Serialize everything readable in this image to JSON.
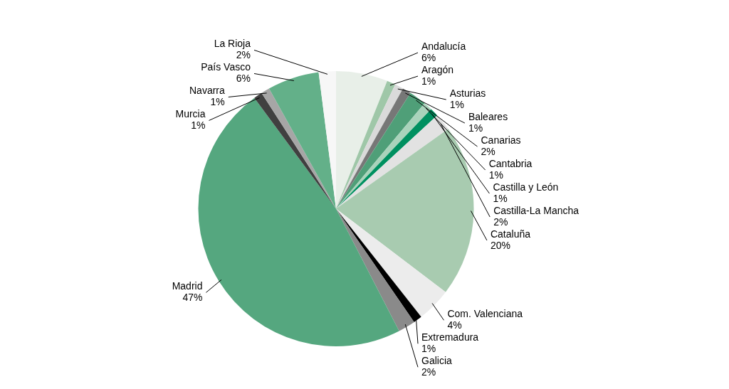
{
  "chart_data": {
    "type": "pie",
    "categories": [
      "Andalucía",
      "Aragón",
      "Asturias",
      "Baleares",
      "Canarias",
      "Cantabria",
      "Castilla y León",
      "Castilla-La Mancha",
      "Cataluña",
      "Com. Valenciana",
      "Extremadura",
      "Galicia",
      "Madrid",
      "Murcia",
      "Navarra",
      "País Vasco",
      "La Rioja"
    ],
    "values": [
      6,
      1,
      1,
      1,
      2,
      1,
      1,
      2,
      20,
      4,
      1,
      2,
      47,
      1,
      1,
      6,
      2
    ],
    "value_labels": [
      "6%",
      "1%",
      "1%",
      "1%",
      "2%",
      "1%",
      "1%",
      "2%",
      "20%",
      "4%",
      "1%",
      "2%",
      "47%",
      "1%",
      "1%",
      "6%",
      "2%"
    ],
    "colors": [
      "#e8efe8",
      "#9fc7a8",
      "#dadada",
      "#777777",
      "#4f9f78",
      "#a9d3bb",
      "#009060",
      "#e2e2e2",
      "#a8cbb0",
      "#ececec",
      "#000000",
      "#8a8a8a",
      "#55a77f",
      "#404040",
      "#a6a6a6",
      "#63b089",
      "#f7f7f7"
    ],
    "legend": false
  }
}
